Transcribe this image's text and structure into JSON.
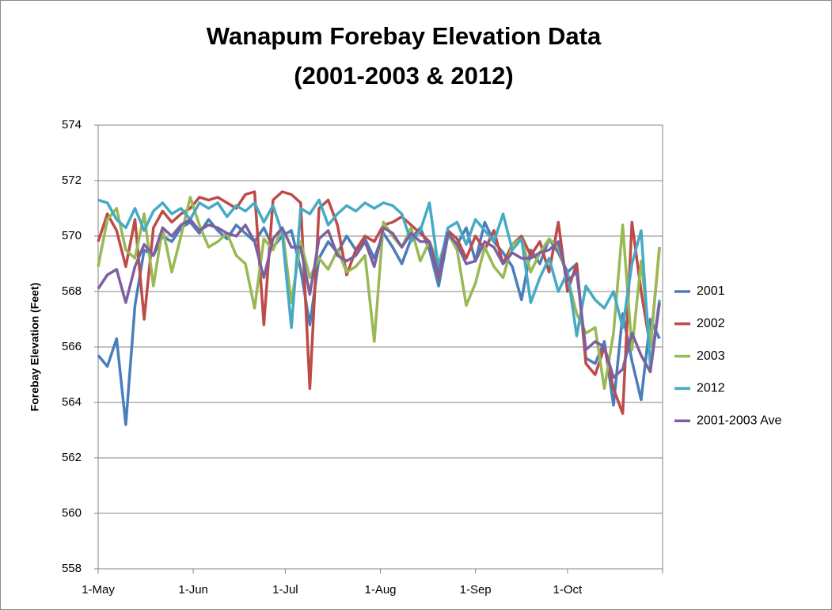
{
  "chart_data": {
    "type": "line",
    "title": [
      "Wanapum Forebay Elevation Data",
      "(2001-2003 & 2012)"
    ],
    "y_label": "Forebay Elevation (Feet)",
    "x": [
      0,
      3,
      6,
      9,
      12,
      15,
      18,
      21,
      24,
      27,
      30,
      33,
      36,
      39,
      42,
      45,
      48,
      51,
      54,
      57,
      60,
      63,
      66,
      69,
      72,
      75,
      78,
      81,
      84,
      87,
      90,
      93,
      96,
      99,
      102,
      105,
      108,
      111,
      114,
      117,
      120,
      123,
      126,
      129,
      132,
      135,
      138,
      141,
      144,
      147,
      150,
      153,
      156,
      159,
      162,
      165,
      168,
      171,
      174,
      177,
      180,
      183
    ],
    "xlim": [
      0,
      184
    ],
    "xticks": [
      {
        "value": 0,
        "label": "1-May"
      },
      {
        "value": 31,
        "label": "1-Jun"
      },
      {
        "value": 61,
        "label": "1-Jul"
      },
      {
        "value": 92,
        "label": "1-Aug"
      },
      {
        "value": 123,
        "label": "1-Sep"
      },
      {
        "value": 153,
        "label": "1-Oct"
      }
    ],
    "ylim": [
      558,
      574
    ],
    "yticks": [
      558,
      560,
      562,
      564,
      566,
      568,
      570,
      572,
      574
    ],
    "grid": true,
    "legend": "right",
    "series": [
      {
        "name": "2001",
        "color": "#4a7ebb",
        "values": [
          565.7,
          565.3,
          566.3,
          563.2,
          567.5,
          569.5,
          569.3,
          570.0,
          569.8,
          570.3,
          570.5,
          570.1,
          570.6,
          570.2,
          569.9,
          570.4,
          570.1,
          569.8,
          570.3,
          569.6,
          570.0,
          570.2,
          568.8,
          566.8,
          569.2,
          569.8,
          569.4,
          570.0,
          569.5,
          569.9,
          569.2,
          570.1,
          569.6,
          569.0,
          569.9,
          570.3,
          569.5,
          568.2,
          570.0,
          569.7,
          570.3,
          569.1,
          570.5,
          569.8,
          569.4,
          568.9,
          567.7,
          569.5,
          569.0,
          569.9,
          569.4,
          568.7,
          569.0,
          565.6,
          565.4,
          566.2,
          563.9,
          567.2,
          565.5,
          564.1,
          567.0,
          566.3
        ]
      },
      {
        "name": "2002",
        "color": "#be4b48",
        "values": [
          569.8,
          570.8,
          570.2,
          568.9,
          570.6,
          567.0,
          570.3,
          570.9,
          570.5,
          570.8,
          571.0,
          571.4,
          571.3,
          571.4,
          571.2,
          571.0,
          571.5,
          571.6,
          566.8,
          571.3,
          571.6,
          571.5,
          571.2,
          564.5,
          571.0,
          571.3,
          570.4,
          568.6,
          569.5,
          570.0,
          569.8,
          570.4,
          570.5,
          570.7,
          570.4,
          570.1,
          569.8,
          568.5,
          570.2,
          569.9,
          569.2,
          570.0,
          569.5,
          570.2,
          569.0,
          569.7,
          570.0,
          569.3,
          569.8,
          568.7,
          570.5,
          568.0,
          569.0,
          565.4,
          565.0,
          566.0,
          564.5,
          563.6,
          570.5,
          568.0,
          566.0,
          569.6
        ]
      },
      {
        "name": "2003",
        "color": "#98b954",
        "values": [
          568.9,
          570.6,
          571.0,
          569.5,
          569.2,
          570.8,
          568.2,
          570.3,
          568.7,
          570.0,
          571.4,
          570.4,
          569.6,
          569.8,
          570.1,
          569.3,
          569.0,
          567.4,
          569.9,
          569.5,
          570.3,
          567.6,
          569.8,
          568.5,
          569.2,
          568.8,
          569.5,
          568.7,
          568.9,
          569.3,
          566.2,
          570.5,
          570.0,
          569.6,
          570.3,
          569.1,
          569.8,
          569.0,
          570.1,
          569.5,
          567.5,
          568.3,
          569.6,
          568.9,
          568.5,
          569.7,
          569.9,
          568.7,
          569.4,
          569.9,
          569.6,
          568.5,
          567.2,
          566.5,
          566.7,
          564.5,
          566.5,
          570.4,
          565.9,
          569.1,
          566.0,
          569.6
        ]
      },
      {
        "name": "2012",
        "color": "#46aac5",
        "values": [
          571.3,
          571.2,
          570.6,
          570.3,
          571.0,
          570.2,
          570.9,
          571.2,
          570.8,
          571.0,
          570.6,
          571.2,
          571.0,
          571.2,
          570.7,
          571.1,
          570.9,
          571.2,
          570.5,
          571.1,
          570.1,
          566.7,
          571.0,
          570.8,
          571.3,
          570.4,
          570.8,
          571.1,
          570.9,
          571.2,
          571.0,
          571.2,
          571.1,
          570.8,
          569.8,
          570.2,
          571.2,
          568.8,
          570.3,
          570.5,
          569.7,
          570.6,
          570.2,
          569.8,
          570.8,
          569.5,
          569.9,
          567.6,
          568.5,
          569.2,
          568.0,
          568.7,
          566.4,
          568.2,
          567.7,
          567.4,
          568.0,
          566.7,
          569.0,
          570.2,
          565.3,
          567.7
        ]
      },
      {
        "name": "2001-2003 Ave",
        "color": "#7d60a0",
        "values": [
          568.1,
          568.6,
          568.8,
          567.6,
          568.9,
          569.7,
          569.3,
          570.3,
          570.0,
          570.4,
          570.6,
          570.2,
          570.4,
          570.3,
          570.1,
          570.0,
          570.4,
          569.8,
          568.5,
          569.9,
          570.3,
          569.6,
          569.6,
          567.9,
          569.9,
          570.2,
          569.3,
          569.1,
          569.3,
          569.8,
          568.9,
          570.3,
          570.1,
          569.6,
          570.1,
          569.8,
          569.8,
          568.6,
          570.1,
          569.7,
          569.0,
          569.1,
          569.8,
          569.6,
          569.0,
          569.4,
          569.2,
          569.2,
          569.4,
          569.5,
          569.8,
          568.4,
          568.7,
          565.9,
          566.2,
          566.0,
          564.9,
          565.2,
          566.5,
          565.7,
          565.1,
          567.6
        ]
      }
    ]
  }
}
